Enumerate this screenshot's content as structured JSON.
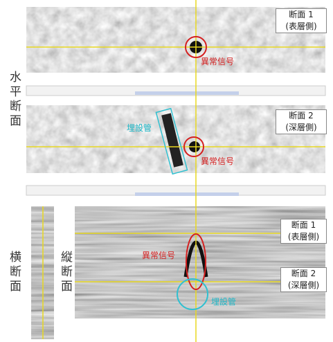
{
  "horizontal_section": {
    "label": "水平断面",
    "panel1": {
      "tag_line1": "断面 1",
      "tag_line2": "(表層側)",
      "anomaly": "異常信号"
    },
    "panel2": {
      "tag_line1": "断面 2",
      "tag_line2": "(深層側)",
      "anomaly": "異常信号",
      "pipe": "埋設管"
    }
  },
  "vertical_section": {
    "cross_label": "横断面",
    "longitudinal_label": "縦断面",
    "tag1_line1": "断面 1",
    "tag1_line2": "(表層側)",
    "tag2_line1": "断面 2",
    "tag2_line2": "(深層側)",
    "anomaly": "異常信号",
    "pipe": "埋設管"
  }
}
